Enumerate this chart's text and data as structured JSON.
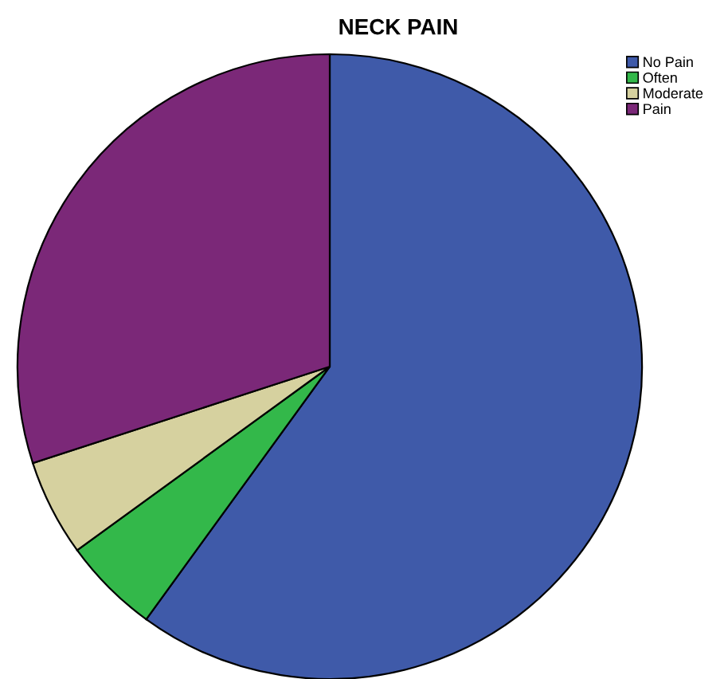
{
  "chart_data": {
    "type": "pie",
    "title": "NECK PAIN",
    "categories": [
      "No Pain",
      "Often",
      "Moderate",
      "Pain"
    ],
    "values": [
      60,
      5,
      5,
      30
    ],
    "colors": [
      "#3f5aa9",
      "#33b84a",
      "#d6d19f",
      "#7b2878"
    ],
    "legend": "top right"
  }
}
